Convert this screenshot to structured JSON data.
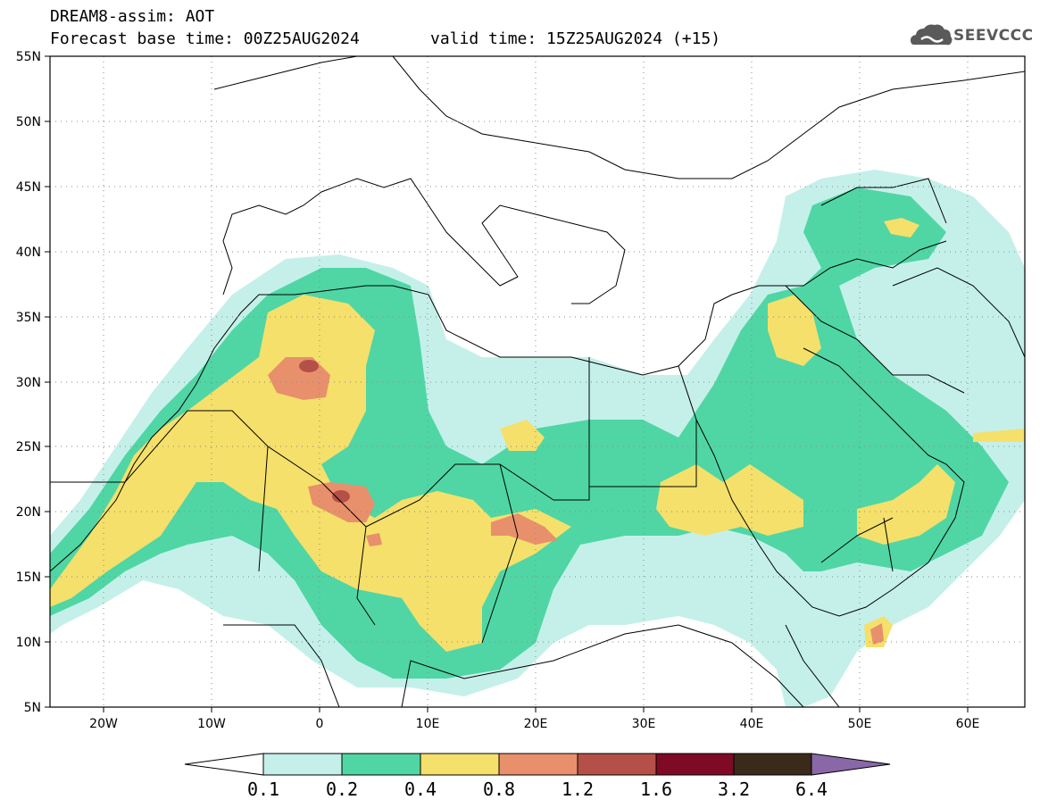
{
  "title": {
    "line1": "DREAM8-assim: AOT",
    "line2": "Forecast base time: 00Z25AUG2024",
    "line2b": "valid time: 15Z25AUG2024 (+15)"
  },
  "logo": {
    "text": "SEEVCCC",
    "icon": "cloud-icon"
  },
  "map": {
    "lat_labels": [
      "55N",
      "50N",
      "45N",
      "40N",
      "35N",
      "30N",
      "25N",
      "20N",
      "15N",
      "10N",
      "5N"
    ],
    "lon_labels": [
      "20W",
      "10W",
      "0",
      "10E",
      "20E",
      "30E",
      "40E",
      "50E",
      "60E"
    ],
    "lon_range": [
      "25W",
      "65E"
    ],
    "lat_range": [
      "5N",
      "55N"
    ],
    "grid": "dotted"
  },
  "colorbar": {
    "labels": [
      "0.1",
      "0.2",
      "0.4",
      "0.8",
      "1.2",
      "1.6",
      "3.2",
      "6.4"
    ],
    "colors": [
      "#ffffff",
      "#c5f0ea",
      "#4fd6a4",
      "#f5e06b",
      "#e8906b",
      "#b55048",
      "#7e0a25",
      "#3a2a1a",
      "#8a68a8"
    ]
  },
  "colors": {
    "c1": "#c5f0ea",
    "c2": "#4fd6a4",
    "c3": "#f5e06b",
    "c4": "#e8906b",
    "c5": "#b55048"
  }
}
